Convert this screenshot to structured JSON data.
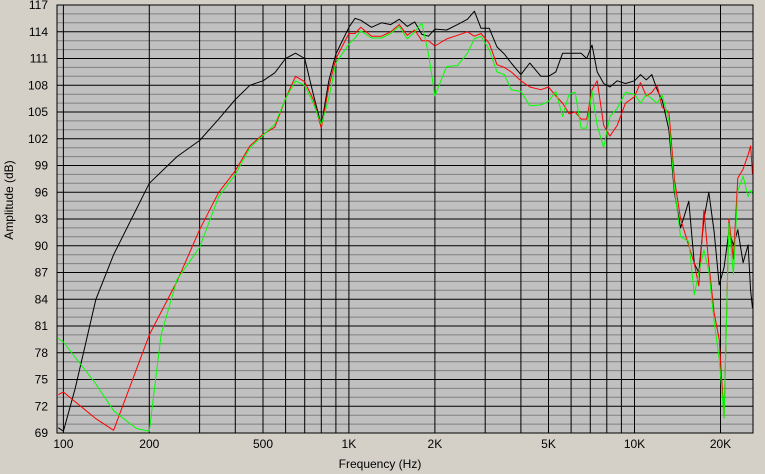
{
  "chart_data": {
    "type": "line",
    "xlabel": "Frequency (Hz)",
    "ylabel": "Amplitude (dB)",
    "x_scale": "log",
    "xlim": [
      95,
      26000
    ],
    "ylim": [
      69,
      117
    ],
    "grid": true,
    "colors": {
      "plot_bg": "#c0c0c0",
      "grid_major": "#000000",
      "grid_minor": "#808080",
      "window_bg": "#d4d0c8"
    },
    "x_ticks": [
      {
        "value": 100,
        "label": "100"
      },
      {
        "value": 200,
        "label": "200"
      },
      {
        "value": 500,
        "label": "500"
      },
      {
        "value": 1000,
        "label": "1K"
      },
      {
        "value": 2000,
        "label": "2K"
      },
      {
        "value": 5000,
        "label": "5K"
      },
      {
        "value": 10000,
        "label": "10K"
      },
      {
        "value": 20000,
        "label": "20K"
      }
    ],
    "y_ticks": [
      69,
      72,
      75,
      78,
      81,
      84,
      87,
      90,
      93,
      96,
      99,
      102,
      105,
      108,
      111,
      114,
      117
    ],
    "series": [
      {
        "color": "#000000",
        "points": [
          [
            96,
            69.6
          ],
          [
            100,
            69.2
          ],
          [
            110,
            74
          ],
          [
            130,
            84
          ],
          [
            150,
            89
          ],
          [
            200,
            97
          ],
          [
            250,
            100
          ],
          [
            300,
            101.8
          ],
          [
            350,
            104.2
          ],
          [
            400,
            106.4
          ],
          [
            450,
            108
          ],
          [
            500,
            108.5
          ],
          [
            550,
            109.4
          ],
          [
            600,
            111
          ],
          [
            650,
            111.6
          ],
          [
            700,
            111
          ],
          [
            750,
            107
          ],
          [
            800,
            103.5
          ],
          [
            850,
            108.5
          ],
          [
            900,
            111.5
          ],
          [
            1000,
            114.5
          ],
          [
            1050,
            115.5
          ],
          [
            1100,
            115.3
          ],
          [
            1200,
            114.5
          ],
          [
            1300,
            115
          ],
          [
            1400,
            114.8
          ],
          [
            1500,
            115.4
          ],
          [
            1600,
            114.6
          ],
          [
            1700,
            115.1
          ],
          [
            1800,
            113.7
          ],
          [
            1900,
            113.5
          ],
          [
            2000,
            114.3
          ],
          [
            2200,
            114.2
          ],
          [
            2400,
            114.8
          ],
          [
            2600,
            115.4
          ],
          [
            2750,
            116.3
          ],
          [
            2900,
            114.4
          ],
          [
            3100,
            114.4
          ],
          [
            3300,
            112.3
          ],
          [
            3500,
            111.5
          ],
          [
            3700,
            110.5
          ],
          [
            4000,
            109.2
          ],
          [
            4300,
            110.5
          ],
          [
            4700,
            109
          ],
          [
            5000,
            109
          ],
          [
            5300,
            109.5
          ],
          [
            5600,
            111.6
          ],
          [
            5900,
            111.6
          ],
          [
            6200,
            111.6
          ],
          [
            6500,
            111.6
          ],
          [
            6800,
            111
          ],
          [
            7100,
            112.5
          ],
          [
            7400,
            109.5
          ],
          [
            7800,
            108.2
          ],
          [
            8200,
            107.8
          ],
          [
            8700,
            108.5
          ],
          [
            9300,
            108.2
          ],
          [
            10000,
            108.5
          ],
          [
            10500,
            109.2
          ],
          [
            11000,
            108.6
          ],
          [
            11500,
            109.2
          ],
          [
            12000,
            107.5
          ],
          [
            12500,
            106.3
          ],
          [
            13200,
            103
          ],
          [
            13800,
            96
          ],
          [
            14500,
            92
          ],
          [
            15500,
            95
          ],
          [
            16200,
            88
          ],
          [
            16800,
            87
          ],
          [
            17500,
            93
          ],
          [
            18200,
            96
          ],
          [
            19000,
            91.6
          ],
          [
            19800,
            85.6
          ],
          [
            20600,
            87.6
          ],
          [
            21400,
            91.6
          ],
          [
            22200,
            90.1
          ],
          [
            23000,
            91.8
          ],
          [
            24000,
            88.1
          ],
          [
            25000,
            90.1
          ],
          [
            25500,
            85
          ],
          [
            25900,
            83
          ]
        ]
      },
      {
        "color": "#ff0000",
        "points": [
          [
            96,
            73.3
          ],
          [
            100,
            73.6
          ],
          [
            130,
            70.6
          ],
          [
            150,
            69.3
          ],
          [
            200,
            80
          ],
          [
            250,
            86
          ],
          [
            300,
            91.8
          ],
          [
            350,
            96
          ],
          [
            400,
            98.4
          ],
          [
            450,
            101.2
          ],
          [
            500,
            102.5
          ],
          [
            550,
            103.3
          ],
          [
            600,
            106.5
          ],
          [
            650,
            109
          ],
          [
            700,
            108.4
          ],
          [
            750,
            106.4
          ],
          [
            800,
            103.2
          ],
          [
            850,
            107.8
          ],
          [
            900,
            111
          ],
          [
            1000,
            113.8
          ],
          [
            1050,
            113.8
          ],
          [
            1100,
            114.5
          ],
          [
            1200,
            113.5
          ],
          [
            1300,
            113.5
          ],
          [
            1400,
            114
          ],
          [
            1500,
            114.8
          ],
          [
            1600,
            113.6
          ],
          [
            1700,
            114.2
          ],
          [
            1800,
            113
          ],
          [
            1900,
            113
          ],
          [
            2000,
            112.4
          ],
          [
            2200,
            113.2
          ],
          [
            2400,
            113.6
          ],
          [
            2600,
            114
          ],
          [
            2750,
            113.5
          ],
          [
            2900,
            113.8
          ],
          [
            3100,
            112.7
          ],
          [
            3300,
            110.3
          ],
          [
            3500,
            110
          ],
          [
            3700,
            109.5
          ],
          [
            4000,
            108.5
          ],
          [
            4300,
            107.8
          ],
          [
            4700,
            107.5
          ],
          [
            5000,
            107.8
          ],
          [
            5300,
            106.8
          ],
          [
            5600,
            106
          ],
          [
            5900,
            104.8
          ],
          [
            6200,
            105
          ],
          [
            6500,
            104.2
          ],
          [
            6800,
            104.2
          ],
          [
            7100,
            107.5
          ],
          [
            7400,
            108.5
          ],
          [
            7800,
            103.5
          ],
          [
            8200,
            102.3
          ],
          [
            8700,
            103.5
          ],
          [
            9300,
            106
          ],
          [
            10000,
            106.7
          ],
          [
            10500,
            108.3
          ],
          [
            11000,
            106.8
          ],
          [
            11500,
            107.2
          ],
          [
            12000,
            108
          ],
          [
            12500,
            105.5
          ],
          [
            13200,
            105
          ],
          [
            13800,
            97.5
          ],
          [
            14500,
            93
          ],
          [
            15500,
            90
          ],
          [
            16200,
            88
          ],
          [
            16800,
            85.5
          ],
          [
            17500,
            94
          ],
          [
            18200,
            88
          ],
          [
            19000,
            82.5
          ],
          [
            19800,
            79.5
          ],
          [
            20600,
            70.7
          ],
          [
            21400,
            93
          ],
          [
            22200,
            88.5
          ],
          [
            23000,
            97.6
          ],
          [
            24000,
            98.6
          ],
          [
            25000,
            100.2
          ],
          [
            25500,
            101.2
          ],
          [
            25900,
            98
          ]
        ]
      },
      {
        "color": "#00ff00",
        "points": [
          [
            96,
            79.6
          ],
          [
            100,
            79.2
          ],
          [
            130,
            74.5
          ],
          [
            150,
            71.5
          ],
          [
            180,
            69.5
          ],
          [
            200,
            69.2
          ],
          [
            220,
            80
          ],
          [
            250,
            86.2
          ],
          [
            300,
            89.8
          ],
          [
            350,
            95.5
          ],
          [
            400,
            98
          ],
          [
            450,
            101
          ],
          [
            500,
            102.4
          ],
          [
            550,
            103.6
          ],
          [
            600,
            106.5
          ],
          [
            650,
            108.5
          ],
          [
            700,
            108
          ],
          [
            750,
            106
          ],
          [
            800,
            103.6
          ],
          [
            850,
            106.5
          ],
          [
            900,
            110.5
          ],
          [
            1000,
            112.6
          ],
          [
            1050,
            113.3
          ],
          [
            1100,
            114.1
          ],
          [
            1200,
            113.3
          ],
          [
            1300,
            113.3
          ],
          [
            1400,
            113.8
          ],
          [
            1500,
            114.6
          ],
          [
            1600,
            113.2
          ],
          [
            1700,
            114
          ],
          [
            1800,
            115
          ],
          [
            1900,
            111.5
          ],
          [
            2000,
            106.8
          ],
          [
            2100,
            108.5
          ],
          [
            2200,
            110.1
          ],
          [
            2400,
            110.2
          ],
          [
            2600,
            111.6
          ],
          [
            2750,
            113.2
          ],
          [
            2900,
            113.5
          ],
          [
            3100,
            112
          ],
          [
            3300,
            109.5
          ],
          [
            3500,
            109.2
          ],
          [
            3700,
            107.5
          ],
          [
            4000,
            107.3
          ],
          [
            4300,
            105.7
          ],
          [
            4700,
            105.8
          ],
          [
            5000,
            106.2
          ],
          [
            5300,
            107.3
          ],
          [
            5600,
            104.5
          ],
          [
            5900,
            107
          ],
          [
            6200,
            107.2
          ],
          [
            6500,
            103.2
          ],
          [
            6800,
            103.2
          ],
          [
            7100,
            107.3
          ],
          [
            7400,
            103.5
          ],
          [
            7800,
            101
          ],
          [
            8200,
            104.5
          ],
          [
            8700,
            105.4
          ],
          [
            9300,
            107.2
          ],
          [
            10000,
            107
          ],
          [
            10500,
            106
          ],
          [
            11000,
            107
          ],
          [
            11500,
            106.5
          ],
          [
            12000,
            106
          ],
          [
            12500,
            106.9
          ],
          [
            13200,
            104
          ],
          [
            13800,
            96.5
          ],
          [
            14500,
            91
          ],
          [
            15500,
            90.5
          ],
          [
            16200,
            84.5
          ],
          [
            16800,
            87
          ],
          [
            17500,
            89.5
          ],
          [
            18200,
            87.2
          ],
          [
            19000,
            81.5
          ],
          [
            19800,
            77.3
          ],
          [
            20600,
            70.7
          ],
          [
            21400,
            92.5
          ],
          [
            22200,
            86.8
          ],
          [
            23000,
            96.2
          ],
          [
            24000,
            97.8
          ],
          [
            25000,
            95.5
          ],
          [
            25500,
            96.2
          ],
          [
            25900,
            95.8
          ]
        ]
      }
    ]
  }
}
